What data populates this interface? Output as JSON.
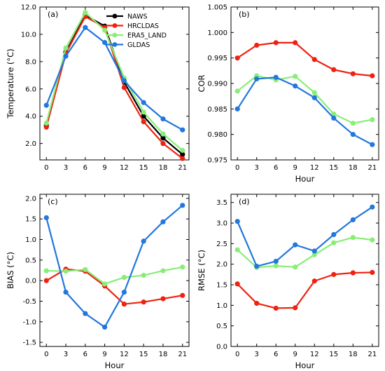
{
  "series_styles": [
    {
      "name": "NAWS",
      "color": "#000000"
    },
    {
      "name": "HRCLDAS",
      "color": "#ee2211"
    },
    {
      "name": "ERA5_LAND",
      "color": "#88ee77"
    },
    {
      "name": "GLDAS",
      "color": "#2277dd"
    }
  ],
  "chart_data": [
    {
      "type": "line",
      "label": "(a)",
      "xlabel": "",
      "ylabel": "Temperature (°C)",
      "x": [
        0,
        3,
        6,
        9,
        12,
        15,
        18,
        21
      ],
      "xticks": [
        "0",
        "3",
        "6",
        "9",
        "12",
        "15",
        "18",
        "21"
      ],
      "xlim": [
        -1,
        22
      ],
      "ylim": [
        0.8,
        12.0
      ],
      "yticks": [
        2.0,
        4.0,
        6.0,
        8.0,
        10.0,
        12.0
      ],
      "yticklabels": [
        "2.0",
        "4.0",
        "6.0",
        "8.0",
        "10.0",
        "12.0"
      ],
      "legend": [
        "NAWS",
        "HRCLDAS",
        "ERA5_LAND",
        "GLDAS"
      ],
      "legend_position": "top-right",
      "series": [
        {
          "name": "NAWS",
          "values": [
            3.3,
            8.7,
            11.4,
            10.6,
            6.5,
            4.0,
            2.4,
            1.2
          ]
        },
        {
          "name": "HRCLDAS",
          "values": [
            3.2,
            8.6,
            11.3,
            10.5,
            6.1,
            3.6,
            2.0,
            0.9
          ]
        },
        {
          "name": "ERA5_LAND",
          "values": [
            3.5,
            9.0,
            11.6,
            10.3,
            6.8,
            4.3,
            2.7,
            1.5
          ]
        },
        {
          "name": "GLDAS",
          "values": [
            4.8,
            8.4,
            10.5,
            9.4,
            6.6,
            5.0,
            3.8,
            3.0
          ]
        }
      ]
    },
    {
      "type": "line",
      "label": "(b)",
      "xlabel": "Hour",
      "ylabel": "COR",
      "x": [
        0,
        3,
        6,
        9,
        12,
        15,
        18,
        21
      ],
      "xticks": [
        "0",
        "3",
        "6",
        "9",
        "12",
        "15",
        "18",
        "21"
      ],
      "xlim": [
        -1,
        22
      ],
      "ylim": [
        0.975,
        1.005
      ],
      "yticks": [
        0.975,
        0.98,
        0.985,
        0.99,
        0.995,
        1.0,
        1.005
      ],
      "yticklabels": [
        "0.975",
        "0.980",
        "0.985",
        "0.990",
        "0.995",
        "1.000",
        "1.005"
      ],
      "series": [
        {
          "name": "HRCLDAS",
          "values": [
            0.995,
            0.9975,
            0.998,
            0.998,
            0.9947,
            0.9927,
            0.9919,
            0.9915
          ]
        },
        {
          "name": "ERA5_LAND",
          "values": [
            0.9885,
            0.9915,
            0.9907,
            0.9914,
            0.9882,
            0.984,
            0.9822,
            0.9829
          ]
        },
        {
          "name": "GLDAS",
          "values": [
            0.985,
            0.9909,
            0.9912,
            0.9895,
            0.9872,
            0.9832,
            0.98,
            0.978
          ]
        }
      ]
    },
    {
      "type": "line",
      "label": "(c)",
      "xlabel": "Hour",
      "ylabel": "BIAS (°C)",
      "x": [
        0,
        3,
        6,
        9,
        12,
        15,
        18,
        21
      ],
      "xticks": [
        "0",
        "3",
        "6",
        "9",
        "12",
        "15",
        "18",
        "21"
      ],
      "xlim": [
        -1,
        22
      ],
      "ylim": [
        -1.6,
        2.1
      ],
      "yticks": [
        -1.5,
        -1.0,
        -0.5,
        0.0,
        0.5,
        1.0,
        1.5,
        2.0
      ],
      "yticklabels": [
        "-1.5",
        "-1.0",
        "-0.5",
        "0.0",
        "0.5",
        "1.0",
        "1.5",
        "2.0"
      ],
      "series": [
        {
          "name": "HRCLDAS",
          "values": [
            0.0,
            0.28,
            0.23,
            -0.13,
            -0.57,
            -0.52,
            -0.44,
            -0.36
          ]
        },
        {
          "name": "ERA5_LAND",
          "values": [
            0.24,
            0.23,
            0.27,
            -0.08,
            0.08,
            0.13,
            0.24,
            0.33
          ]
        },
        {
          "name": "GLDAS",
          "values": [
            1.53,
            -0.28,
            -0.8,
            -1.13,
            -0.28,
            0.96,
            1.43,
            1.83
          ]
        }
      ]
    },
    {
      "type": "line",
      "label": "(d)",
      "xlabel": "Hour",
      "ylabel": "RMSE (°C)",
      "x": [
        0,
        3,
        6,
        9,
        12,
        15,
        18,
        21
      ],
      "xticks": [
        "0",
        "3",
        "6",
        "9",
        "12",
        "15",
        "18",
        "21"
      ],
      "xlim": [
        -1,
        22
      ],
      "ylim": [
        0.0,
        3.7
      ],
      "yticks": [
        0.0,
        0.5,
        1.0,
        1.5,
        2.0,
        2.5,
        3.0,
        3.5
      ],
      "yticklabels": [
        "0.0",
        "0.5",
        "1.0",
        "1.5",
        "2.0",
        "2.5",
        "3.0",
        "3.5"
      ],
      "series": [
        {
          "name": "HRCLDAS",
          "values": [
            1.52,
            1.05,
            0.93,
            0.94,
            1.59,
            1.75,
            1.79,
            1.8
          ]
        },
        {
          "name": "ERA5_LAND",
          "values": [
            2.35,
            1.92,
            1.96,
            1.93,
            2.23,
            2.52,
            2.65,
            2.59
          ]
        },
        {
          "name": "GLDAS",
          "values": [
            3.04,
            1.95,
            2.07,
            2.47,
            2.32,
            2.72,
            3.08,
            3.39
          ]
        }
      ]
    }
  ]
}
